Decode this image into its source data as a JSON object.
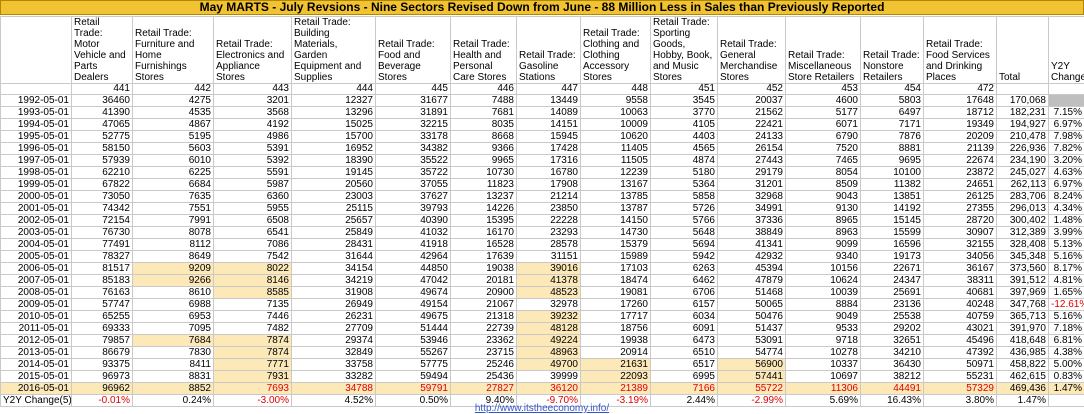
{
  "title": "May MARTS - July Revsions - Nine Sectors Revised Down from June - 88 Million Less in Sales than Previously Reported",
  "headers": [
    "",
    "Retail Trade: Motor Vehicle and Parts Dealers",
    "Retail Trade: Furniture and Home Furnishings Stores",
    "Retail Trade: Electronics and Appliance Stores",
    "Retail Trade: Building Materials, Garden Equipment and Supplies",
    "Retail Trade: Food and Beverage Stores",
    "Retail Trade: Health and Personal Care Stores",
    "Retail Trade: Gasoline Stations",
    "Retail Trade: Clothing and Clothing Accessory Stores",
    "Retail Trade: Sporting Goods, Hobby, Book, and Music Stores",
    "Retail Trade: General Merchandise Stores",
    "Retail Trade: Miscellaneous Store Retailers",
    "Retail Trade: Nonstore Retailers",
    "Retail Trade: Food Services and Drinking Places",
    "Total",
    "Y2Y Change"
  ],
  "codes": [
    "",
    "441",
    "442",
    "443",
    "444",
    "445",
    "446",
    "447",
    "448",
    "451",
    "452",
    "453",
    "454",
    "472",
    "",
    ""
  ],
  "rows": [
    [
      "1992-05-01",
      "36460",
      "4275",
      "3201",
      "12327",
      "31677",
      "7488",
      "13449",
      "9558",
      "3545",
      "20037",
      "4600",
      "5803",
      "17648",
      "170,068",
      ""
    ],
    [
      "1993-05-01",
      "41390",
      "4535",
      "3568",
      "13296",
      "31891",
      "7681",
      "14089",
      "10063",
      "3770",
      "21562",
      "5177",
      "6497",
      "18712",
      "182,231",
      "7.15%"
    ],
    [
      "1994-05-01",
      "47065",
      "4867",
      "4192",
      "15025",
      "32215",
      "8035",
      "14151",
      "10009",
      "4105",
      "22421",
      "6071",
      "7171",
      "19349",
      "194,927",
      "6.97%"
    ],
    [
      "1995-05-01",
      "52775",
      "5195",
      "4986",
      "15700",
      "33178",
      "8668",
      "15945",
      "10620",
      "4403",
      "24133",
      "6790",
      "7876",
      "20209",
      "210,478",
      "7.98%"
    ],
    [
      "1996-05-01",
      "58150",
      "5603",
      "5391",
      "16952",
      "34382",
      "9366",
      "17428",
      "11405",
      "4565",
      "26154",
      "7520",
      "8881",
      "21139",
      "226,936",
      "7.82%"
    ],
    [
      "1997-05-01",
      "57939",
      "6010",
      "5392",
      "18390",
      "35522",
      "9965",
      "17316",
      "11505",
      "4874",
      "27443",
      "7465",
      "9695",
      "22674",
      "234,190",
      "3.20%"
    ],
    [
      "1998-05-01",
      "62210",
      "6225",
      "5591",
      "19145",
      "35722",
      "10730",
      "16780",
      "12239",
      "5180",
      "29179",
      "8054",
      "10100",
      "23872",
      "245,027",
      "4.63%"
    ],
    [
      "1999-05-01",
      "67822",
      "6684",
      "5987",
      "20560",
      "37055",
      "11823",
      "17908",
      "13167",
      "5364",
      "31201",
      "8509",
      "11382",
      "24651",
      "262,113",
      "6.97%"
    ],
    [
      "2000-05-01",
      "73050",
      "7635",
      "6360",
      "23003",
      "37627",
      "13237",
      "21214",
      "13785",
      "5858",
      "32968",
      "9043",
      "13851",
      "26125",
      "283,706",
      "8.24%"
    ],
    [
      "2001-05-01",
      "74342",
      "7551",
      "5955",
      "25115",
      "39793",
      "14226",
      "23850",
      "13787",
      "5726",
      "34991",
      "9130",
      "14192",
      "27355",
      "296,013",
      "4.34%"
    ],
    [
      "2002-05-01",
      "72154",
      "7991",
      "6508",
      "25657",
      "40390",
      "15395",
      "22228",
      "14150",
      "5766",
      "37336",
      "8965",
      "15145",
      "28720",
      "300,402",
      "1.48%"
    ],
    [
      "2003-05-01",
      "76730",
      "8078",
      "6541",
      "25849",
      "41032",
      "16170",
      "23293",
      "14730",
      "5648",
      "38849",
      "8963",
      "15599",
      "30907",
      "312,389",
      "3.99%"
    ],
    [
      "2004-05-01",
      "77491",
      "8112",
      "7086",
      "28431",
      "41918",
      "16528",
      "28578",
      "15379",
      "5694",
      "41341",
      "9099",
      "16596",
      "32155",
      "328,408",
      "5.13%"
    ],
    [
      "2005-05-01",
      "78327",
      "8649",
      "7542",
      "31644",
      "42964",
      "17639",
      "31151",
      "15989",
      "5942",
      "42932",
      "9340",
      "19173",
      "34056",
      "345,348",
      "5.16%"
    ],
    [
      "2006-05-01",
      "81517",
      "9209",
      "8022",
      "34154",
      "44850",
      "19038",
      "39016",
      "17103",
      "6263",
      "45394",
      "10156",
      "22671",
      "36167",
      "373,560",
      "8.17%"
    ],
    [
      "2007-05-01",
      "85183",
      "9266",
      "8146",
      "34219",
      "47042",
      "20181",
      "41378",
      "18474",
      "6462",
      "47879",
      "10624",
      "24347",
      "38311",
      "391,512",
      "4.81%"
    ],
    [
      "2008-05-01",
      "76163",
      "8610",
      "8585",
      "31908",
      "49674",
      "20900",
      "48523",
      "19081",
      "6706",
      "51468",
      "10039",
      "25691",
      "40681",
      "397,969",
      "1.65%"
    ],
    [
      "2009-05-01",
      "57747",
      "6988",
      "7135",
      "26949",
      "49154",
      "21067",
      "32978",
      "17260",
      "6157",
      "50065",
      "8884",
      "23136",
      "40248",
      "347,768",
      "-12.61%"
    ],
    [
      "2010-05-01",
      "65255",
      "6953",
      "7446",
      "26231",
      "49675",
      "21318",
      "39232",
      "17717",
      "6034",
      "50476",
      "9049",
      "25538",
      "40759",
      "365,713",
      "5.16%"
    ],
    [
      "2011-05-01",
      "69333",
      "7095",
      "7482",
      "27709",
      "51444",
      "22739",
      "48128",
      "18756",
      "6091",
      "51437",
      "9533",
      "29202",
      "43021",
      "391,970",
      "7.18%"
    ],
    [
      "2012-05-01",
      "79857",
      "7684",
      "7874",
      "29374",
      "53946",
      "23362",
      "49224",
      "19938",
      "6473",
      "53091",
      "9718",
      "32651",
      "45496",
      "418,648",
      "6.81%"
    ],
    [
      "2013-05-01",
      "86679",
      "7830",
      "7874",
      "32849",
      "55267",
      "23715",
      "48963",
      "20914",
      "6510",
      "54774",
      "10278",
      "34210",
      "47392",
      "436,985",
      "4.38%"
    ],
    [
      "2014-05-01",
      "93375",
      "8411",
      "7771",
      "33758",
      "57775",
      "25246",
      "49700",
      "21631",
      "6517",
      "56900",
      "10337",
      "36430",
      "50971",
      "458,822",
      "5.00%"
    ],
    [
      "2015-05-01",
      "96973",
      "8831",
      "7931",
      "33282",
      "59494",
      "25436",
      "39999",
      "22093",
      "6995",
      "57441",
      "10697",
      "38212",
      "55231",
      "462,615",
      "0.83%"
    ]
  ],
  "highlights": {
    "2006-05-01": [
      2,
      3,
      7
    ],
    "2007-05-01": [
      2,
      3,
      7
    ],
    "2008-05-01": [
      3,
      7
    ],
    "2010-05-01": [
      7
    ],
    "2011-05-01": [
      7
    ],
    "2012-05-01": [
      2,
      3,
      7
    ],
    "2013-05-01": [
      3,
      7
    ],
    "2014-05-01": [
      3,
      7,
      8,
      10
    ],
    "2015-05-01": [
      3,
      8,
      10
    ]
  },
  "row2016": [
    "2016-05-01",
    "96962",
    "8852",
    "7693",
    "34788",
    "59791",
    "27827",
    "36120",
    "21389",
    "7166",
    "55722",
    "11306",
    "44491",
    "57329",
    "469,436",
    "1.47%"
  ],
  "row2016_red": [
    3,
    4,
    5,
    6,
    7,
    8,
    9,
    10,
    11,
    12,
    13
  ],
  "change_row": [
    "Y2Y Change(5)",
    "-0.01%",
    "0.24%",
    "-3.00%",
    "4.52%",
    "0.50%",
    "9.40%",
    "-9.70%",
    "-3.19%",
    "2.44%",
    "-2.99%",
    "5.69%",
    "16.43%",
    "3.80%",
    "1.47%",
    ""
  ],
  "change_neg": [
    1,
    3,
    7,
    8,
    10
  ],
  "change_bold": [
    2,
    6,
    7,
    8,
    10
  ],
  "footer_link": "http://www.itstheeconomy.info/",
  "colors": {
    "title_bg": "#f1c232",
    "highlight": "#fde9b8",
    "negative": "#e00000",
    "gray_cell": "#bfbfbf"
  }
}
